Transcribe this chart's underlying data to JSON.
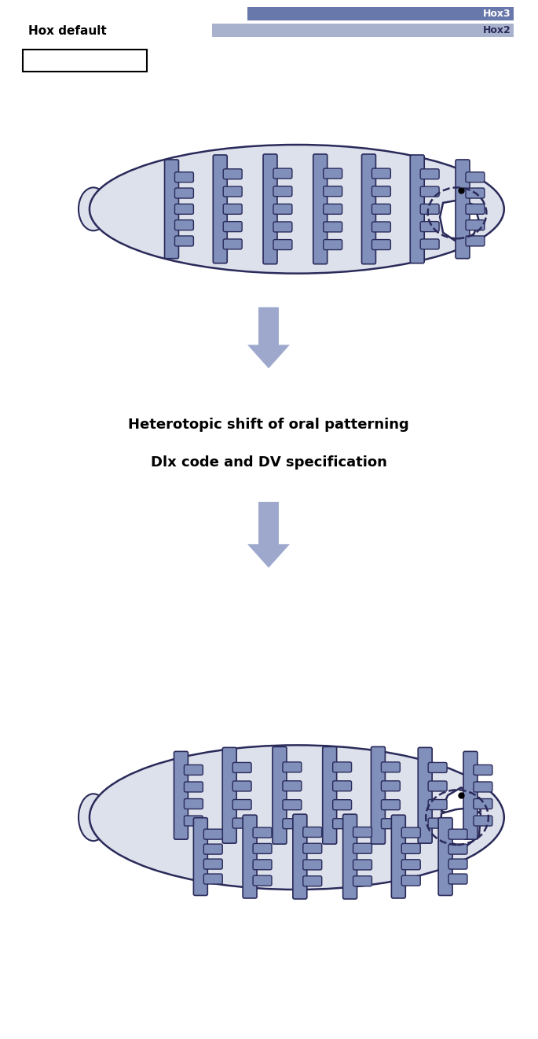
{
  "bg_color": "#ffffff",
  "fish_fill": "#dde1ec",
  "fish_outline": "#2a2a5a",
  "arch_fill": "#8090bb",
  "arch_outline": "#2a2a5a",
  "jaw_fill": "#ffffff",
  "jaw_outline": "#2a2a5a",
  "arrow_color": "#9da8cc",
  "hox3_color": "#6878aa",
  "hox2_color": "#a8b2cc",
  "hox_label_fg": "#ffffff",
  "hox_label_fg2": "#2a2a5a",
  "hox_default_label": "Hox default",
  "hox3_label": "Hox3",
  "hox2_label": "Hox2",
  "title_line1": "Heterotopic shift of oral patterning",
  "title_line2": "Dlx code and DV specification",
  "title_fontsize": 13,
  "label_fontsize": 11,
  "fig_w": 6.85,
  "fig_h": 13.21,
  "dpi": 100
}
